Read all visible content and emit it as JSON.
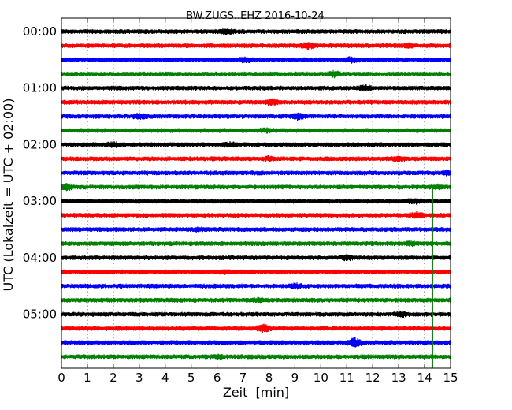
{
  "chart_data": {
    "type": "line",
    "title": "BW.ZUGS..EHZ 2016-10-24",
    "xlabel": "Zeit  [min]",
    "ylabel": "UTC (Lokalzeit = UTC + 02:00)",
    "xlim": [
      0,
      15
    ],
    "x_ticks": [
      "0",
      "1",
      "2",
      "3",
      "4",
      "5",
      "6",
      "7",
      "8",
      "9",
      "10",
      "11",
      "12",
      "13",
      "14",
      "15"
    ],
    "y_ticks": [
      "00:00",
      "01:00",
      "02:00",
      "03:00",
      "04:00",
      "05:00"
    ],
    "trace_interval_min": 15,
    "trace_count": 24,
    "trace_colors": [
      "#000000",
      "#ff0000",
      "#0000ff",
      "#008000"
    ],
    "grid": true,
    "event_line": {
      "x_min": 14.3,
      "from_trace": 11,
      "to_trace": 23,
      "color": "#008000"
    },
    "amplitude_bursts": [
      {
        "trace": 0,
        "x": 6.4,
        "a": 1.7
      },
      {
        "trace": 1,
        "x": 9.5,
        "a": 1.8
      },
      {
        "trace": 1,
        "x": 13.4,
        "a": 1.6
      },
      {
        "trace": 2,
        "x": 7.1,
        "a": 1.6
      },
      {
        "trace": 2,
        "x": 11.2,
        "a": 1.7
      },
      {
        "trace": 3,
        "x": 10.5,
        "a": 1.9
      },
      {
        "trace": 4,
        "x": 11.7,
        "a": 1.7
      },
      {
        "trace": 5,
        "x": 8.1,
        "a": 1.8
      },
      {
        "trace": 6,
        "x": 3.0,
        "a": 1.8
      },
      {
        "trace": 6,
        "x": 9.1,
        "a": 1.9
      },
      {
        "trace": 7,
        "x": 7.9,
        "a": 1.6
      },
      {
        "trace": 8,
        "x": 2.0,
        "a": 1.6
      },
      {
        "trace": 8,
        "x": 6.5,
        "a": 1.5
      },
      {
        "trace": 9,
        "x": 8.0,
        "a": 1.5
      },
      {
        "trace": 9,
        "x": 13.0,
        "a": 1.7
      },
      {
        "trace": 10,
        "x": 14.9,
        "a": 1.6
      },
      {
        "trace": 11,
        "x": 0.2,
        "a": 1.9
      },
      {
        "trace": 11,
        "x": 14.5,
        "a": 1.5
      },
      {
        "trace": 12,
        "x": 13.6,
        "a": 1.7
      },
      {
        "trace": 13,
        "x": 13.7,
        "a": 2.0
      },
      {
        "trace": 14,
        "x": 5.3,
        "a": 1.4
      },
      {
        "trace": 15,
        "x": 13.5,
        "a": 1.5
      },
      {
        "trace": 16,
        "x": 11.0,
        "a": 1.5
      },
      {
        "trace": 17,
        "x": 6.2,
        "a": 1.5
      },
      {
        "trace": 18,
        "x": 9.0,
        "a": 1.6
      },
      {
        "trace": 19,
        "x": 7.6,
        "a": 1.4
      },
      {
        "trace": 20,
        "x": 13.1,
        "a": 1.7
      },
      {
        "trace": 21,
        "x": 7.8,
        "a": 2.2
      },
      {
        "trace": 22,
        "x": 11.3,
        "a": 2.6
      },
      {
        "trace": 23,
        "x": 6.0,
        "a": 1.4
      }
    ]
  }
}
